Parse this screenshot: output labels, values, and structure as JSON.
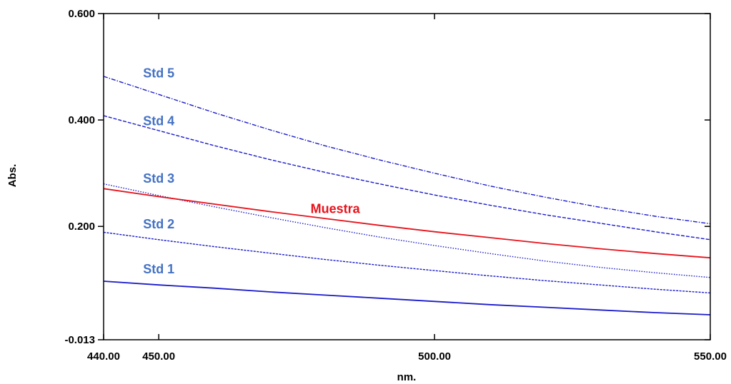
{
  "chart_data": {
    "type": "line",
    "xlabel": "nm.",
    "ylabel": "Abs.",
    "xlim": [
      440,
      550
    ],
    "ylim": [
      -0.013,
      0.6
    ],
    "x_ticks": [
      {
        "value": 440,
        "label": "440.00"
      },
      {
        "value": 450,
        "label": "450.00"
      },
      {
        "value": 500,
        "label": "500.00"
      },
      {
        "value": 550,
        "label": "550.00"
      }
    ],
    "y_ticks": [
      {
        "value": -0.013,
        "label": "-0.013"
      },
      {
        "value": 0.2,
        "label": "0.200"
      },
      {
        "value": 0.4,
        "label": "0.400"
      },
      {
        "value": 0.6,
        "label": "0.600"
      }
    ],
    "x": [
      440,
      450,
      460,
      470,
      480,
      490,
      500,
      510,
      520,
      530,
      540,
      550
    ],
    "series": [
      {
        "name": "Std 5",
        "color": "#1a1acc",
        "style": "dash-dot",
        "label_at": [
          450,
          0.48
        ],
        "values": [
          0.482,
          0.448,
          0.414,
          0.382,
          0.352,
          0.325,
          0.3,
          0.276,
          0.255,
          0.236,
          0.219,
          0.205
        ]
      },
      {
        "name": "Std 4",
        "color": "#1a1acc",
        "style": "dash",
        "label_at": [
          450,
          0.39
        ],
        "values": [
          0.408,
          0.38,
          0.352,
          0.326,
          0.302,
          0.28,
          0.259,
          0.24,
          0.222,
          0.206,
          0.19,
          0.175
        ]
      },
      {
        "name": "Std 3",
        "color": "#1a1acc",
        "style": "dot",
        "label_at": [
          450,
          0.282
        ],
        "values": [
          0.28,
          0.258,
          0.237,
          0.217,
          0.198,
          0.18,
          0.164,
          0.149,
          0.135,
          0.123,
          0.113,
          0.104
        ]
      },
      {
        "name": "Muestra",
        "color": "#e8121b",
        "style": "solid",
        "label_color": "#e8121b",
        "label_at": [
          482,
          0.225
        ],
        "values": [
          0.271,
          0.256,
          0.242,
          0.228,
          0.215,
          0.202,
          0.19,
          0.179,
          0.168,
          0.158,
          0.149,
          0.141
        ]
      },
      {
        "name": "Std 2",
        "color": "#1a1acc",
        "style": "dense-dash",
        "label_at": [
          450,
          0.196
        ],
        "values": [
          0.189,
          0.175,
          0.162,
          0.15,
          0.138,
          0.127,
          0.117,
          0.107,
          0.098,
          0.09,
          0.082,
          0.075
        ]
      },
      {
        "name": "Std 1",
        "color": "#1a1acc",
        "style": "solid",
        "label_at": [
          450,
          0.112
        ],
        "values": [
          0.097,
          0.09,
          0.084,
          0.077,
          0.071,
          0.065,
          0.059,
          0.053,
          0.048,
          0.043,
          0.038,
          0.034
        ]
      }
    ],
    "label_color": "#4472c4",
    "grid": false,
    "legend": "none"
  }
}
